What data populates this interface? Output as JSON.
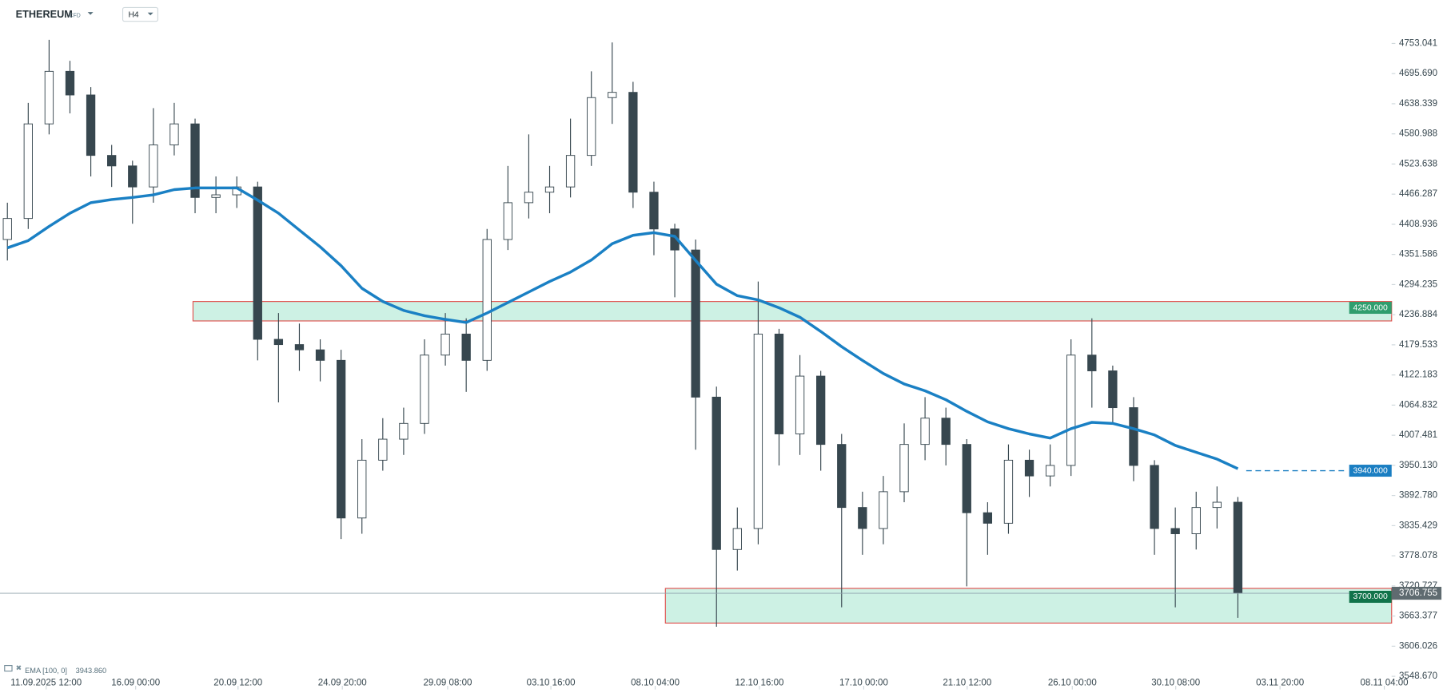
{
  "chart_data": {
    "type": "candlestick",
    "title": "ETHEREUM",
    "instrument_type": "CFD",
    "timeframe": "H4",
    "candles": {
      "up_color": "#ffffff",
      "down_color": "#37474f",
      "open": [
        4380,
        4420,
        4600,
        4700,
        4655,
        4540,
        4520,
        4480,
        4560,
        4600,
        4460,
        4465,
        4480,
        4190,
        4180,
        4170,
        4150,
        3850,
        3960,
        4000,
        4030,
        4160,
        4200,
        4150,
        4380,
        4450,
        4470,
        4480,
        4540,
        4650,
        4660,
        4470,
        4400,
        4360,
        4080,
        3790,
        3830,
        4200,
        4010,
        4120,
        3990,
        3870,
        3830,
        3900,
        3990,
        4040,
        3990,
        3860,
        3840,
        3960,
        3930,
        3950,
        4160,
        4130,
        4060,
        3950,
        3830,
        3820,
        3870,
        3880
      ],
      "high": [
        4450,
        4640,
        4760,
        4720,
        4670,
        4560,
        4530,
        4630,
        4640,
        4610,
        4500,
        4500,
        4490,
        4240,
        4220,
        4190,
        4170,
        4000,
        4040,
        4060,
        4190,
        4240,
        4230,
        4400,
        4520,
        4580,
        4520,
        4610,
        4700,
        4755,
        4680,
        4490,
        4410,
        4380,
        4100,
        3870,
        4300,
        4210,
        4160,
        4130,
        4010,
        3900,
        3930,
        4030,
        4080,
        4060,
        4000,
        3880,
        3990,
        3980,
        3990,
        4190,
        4230,
        4140,
        4080,
        3960,
        3870,
        3900,
        3910,
        3890
      ],
      "low": [
        4340,
        4400,
        4580,
        4620,
        4500,
        4480,
        4410,
        4450,
        4540,
        4430,
        4430,
        4440,
        4150,
        4070,
        4130,
        4110,
        3810,
        3820,
        3940,
        3970,
        4010,
        4140,
        4090,
        4130,
        4360,
        4420,
        4430,
        4460,
        4520,
        4600,
        4440,
        4350,
        4270,
        3980,
        3643,
        3750,
        3800,
        3950,
        3970,
        3940,
        3680,
        3780,
        3800,
        3880,
        3960,
        3950,
        3720,
        3780,
        3820,
        3890,
        3910,
        3930,
        4060,
        4030,
        3920,
        3780,
        3680,
        3790,
        3830,
        3660
      ],
      "close": [
        4420,
        4600,
        4700,
        4655,
        4540,
        4520,
        4480,
        4560,
        4600,
        4460,
        4465,
        4480,
        4190,
        4180,
        4170,
        4150,
        3850,
        3960,
        4000,
        4030,
        4160,
        4200,
        4150,
        4380,
        4450,
        4470,
        4480,
        4540,
        4650,
        4660,
        4470,
        4400,
        4360,
        4080,
        3790,
        3830,
        4200,
        4010,
        4120,
        3990,
        3870,
        3830,
        3900,
        3990,
        4040,
        3990,
        3860,
        3840,
        3960,
        3930,
        3950,
        4160,
        4130,
        4060,
        3950,
        3830,
        3820,
        3870,
        3880,
        3706.755
      ],
      "last_label": "3706.755"
    },
    "ema": {
      "name": "EMA [100, 0]",
      "color": "#1a80c4",
      "values": [
        4364,
        4378,
        4405,
        4430,
        4450,
        4456,
        4460,
        4465,
        4475,
        4478,
        4478,
        4478,
        4455,
        4430,
        4398,
        4366,
        4330,
        4287,
        4262,
        4245,
        4235,
        4228,
        4222,
        4240,
        4260,
        4280,
        4300,
        4318,
        4341,
        4372,
        4388,
        4393,
        4386,
        4340,
        4295,
        4273,
        4265,
        4250,
        4232,
        4205,
        4176,
        4150,
        4125,
        4105,
        4092,
        4075,
        4053,
        4033,
        4020,
        4010,
        4002,
        4020,
        4032,
        4030,
        4020,
        4008,
        3988,
        3975,
        3962,
        3943.86
      ],
      "last_label": "3943.860"
    },
    "zones": [
      {
        "label": "4250.000",
        "level": 4250,
        "top": 4262,
        "bottom": 4225,
        "start": 8.9,
        "label_color": "#2f9e6e"
      },
      {
        "label": "3700.000",
        "level": 3700,
        "top": 3716,
        "bottom": 3650,
        "start": 31.55,
        "label_color": "#11734a"
      }
    ],
    "alert": {
      "label": "3940.000",
      "level": 3940,
      "start": 59.4,
      "color": "#1a7ec2"
    },
    "xlim": [
      -0.354,
      66.372
    ],
    "xticks": [
      {
        "value": 1.86,
        "label": "11.09.2025   12:00"
      },
      {
        "value": 6.15,
        "label": "16.09 00:00"
      },
      {
        "value": 11.06,
        "label": "20.09 12:00"
      },
      {
        "value": 16.06,
        "label": "24.09 20:00"
      },
      {
        "value": 21.11,
        "label": "29.09 08:00"
      },
      {
        "value": 26.06,
        "label": "03.10 16:00"
      },
      {
        "value": 31.06,
        "label": "08.10 04:00"
      },
      {
        "value": 36.06,
        "label": "12.10 16:00"
      },
      {
        "value": 41.06,
        "label": "17.10 00:00"
      },
      {
        "value": 46.02,
        "label": "21.10 12:00"
      },
      {
        "value": 51.06,
        "label": "26.10 00:00"
      },
      {
        "value": 56.02,
        "label": "30.10 08:00"
      },
      {
        "value": 61.02,
        "label": "03.11 20:00"
      },
      {
        "value": 66.02,
        "label": "08.11 04:00"
      }
    ],
    "ylim": [
      3523.6,
      4782.9
    ],
    "yticks": [
      4753.041,
      {
        "value": 4695.69,
        "label": "4695.690"
      },
      4638.339,
      4580.988,
      4523.638,
      4466.287,
      4408.936,
      4351.586,
      4294.235,
      4236.884,
      4179.533,
      4122.183,
      4064.832,
      4007.481,
      {
        "value": 3950.13,
        "label": "3950.130"
      },
      {
        "value": 3892.78,
        "label": "3892.780"
      },
      3835.429,
      3778.078,
      3720.727,
      3663.377,
      3606.026,
      {
        "value": 3548.67,
        "label": "3548.670"
      }
    ]
  }
}
